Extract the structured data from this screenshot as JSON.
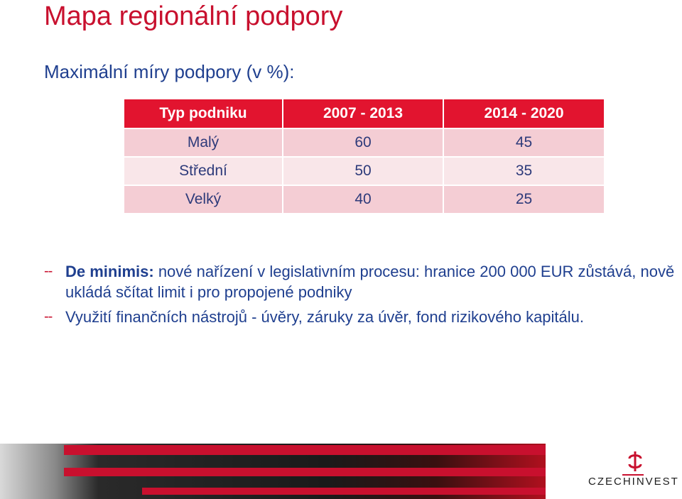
{
  "slide": {
    "title": "Mapa regionální podpory",
    "subtitle": "Maximální míry podpory (v %):"
  },
  "table": {
    "headers": [
      "Typ podniku",
      "2007 - 2013",
      "2014 - 2020"
    ],
    "rows": [
      [
        "Malý",
        "60",
        "45"
      ],
      [
        "Střední",
        "50",
        "35"
      ],
      [
        "Velký",
        "40",
        "25"
      ]
    ]
  },
  "bullets": [
    {
      "marker": "--",
      "bold": "De minimis:",
      "text": " nové nařízení v legislativním procesu: hranice 200 000 EUR zůstává, nově ukládá sčítat limit i pro propojené podniky"
    },
    {
      "marker": "--",
      "bold": "",
      "text": "Využití finančních nástrojů - úvěry, záruky za úvěr, fond rizikového kapitálu."
    }
  ],
  "logo": {
    "part1": "CZECH",
    "part2": "INVEST"
  },
  "colors": {
    "accent_red": "#c8102e",
    "header_red": "#e2142f",
    "text_blue": "#1f3f8f",
    "row_light": "#f4cdd4",
    "row_lighter": "#f9e6e9"
  }
}
